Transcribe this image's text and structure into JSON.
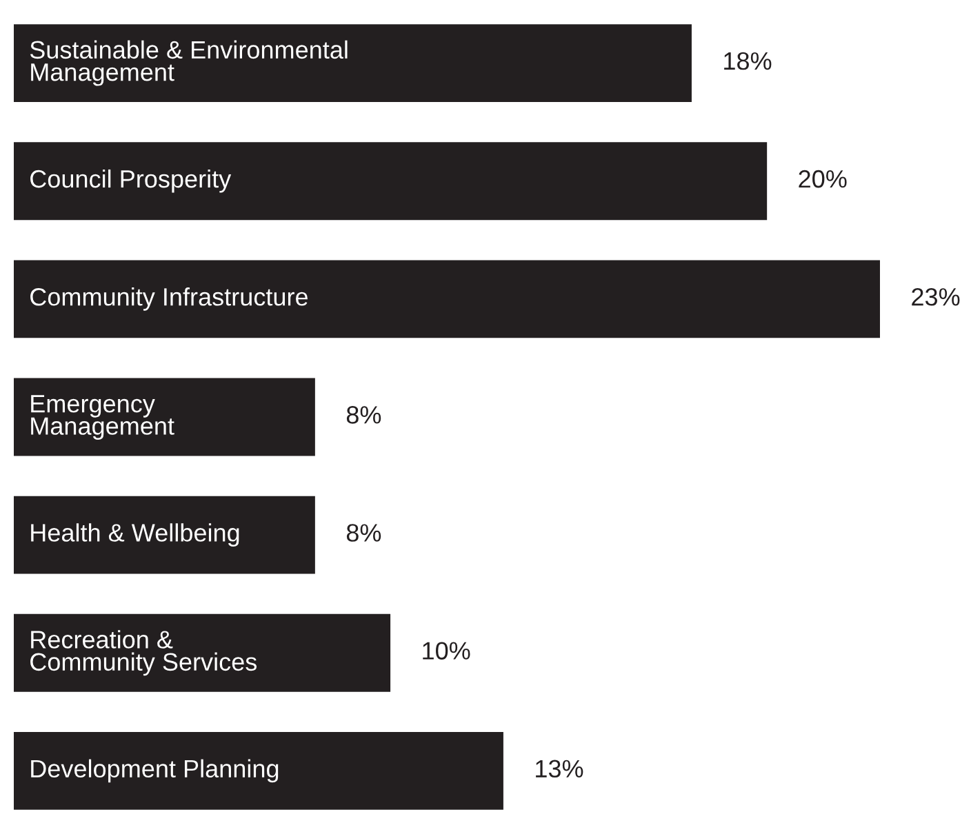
{
  "chart_data": {
    "type": "bar",
    "orientation": "horizontal",
    "relative": false,
    "categories": [
      "Sustainable & Environmental\nManagement",
      "Council Prosperity",
      "Community Infrastructure",
      "Emergency\nManagement",
      "Health & Wellbeing",
      "Recreation &\nCommunity Services",
      "Development Planning"
    ],
    "values": [
      18,
      20,
      23,
      8,
      8,
      10,
      13
    ],
    "value_labels": [
      "18%",
      "20%",
      "23%",
      "8%",
      "8%",
      "10%",
      "13%"
    ],
    "color": "#231f20",
    "xlim": [
      0,
      23
    ],
    "tick_labels": false,
    "grid": false,
    "legend": false
  }
}
